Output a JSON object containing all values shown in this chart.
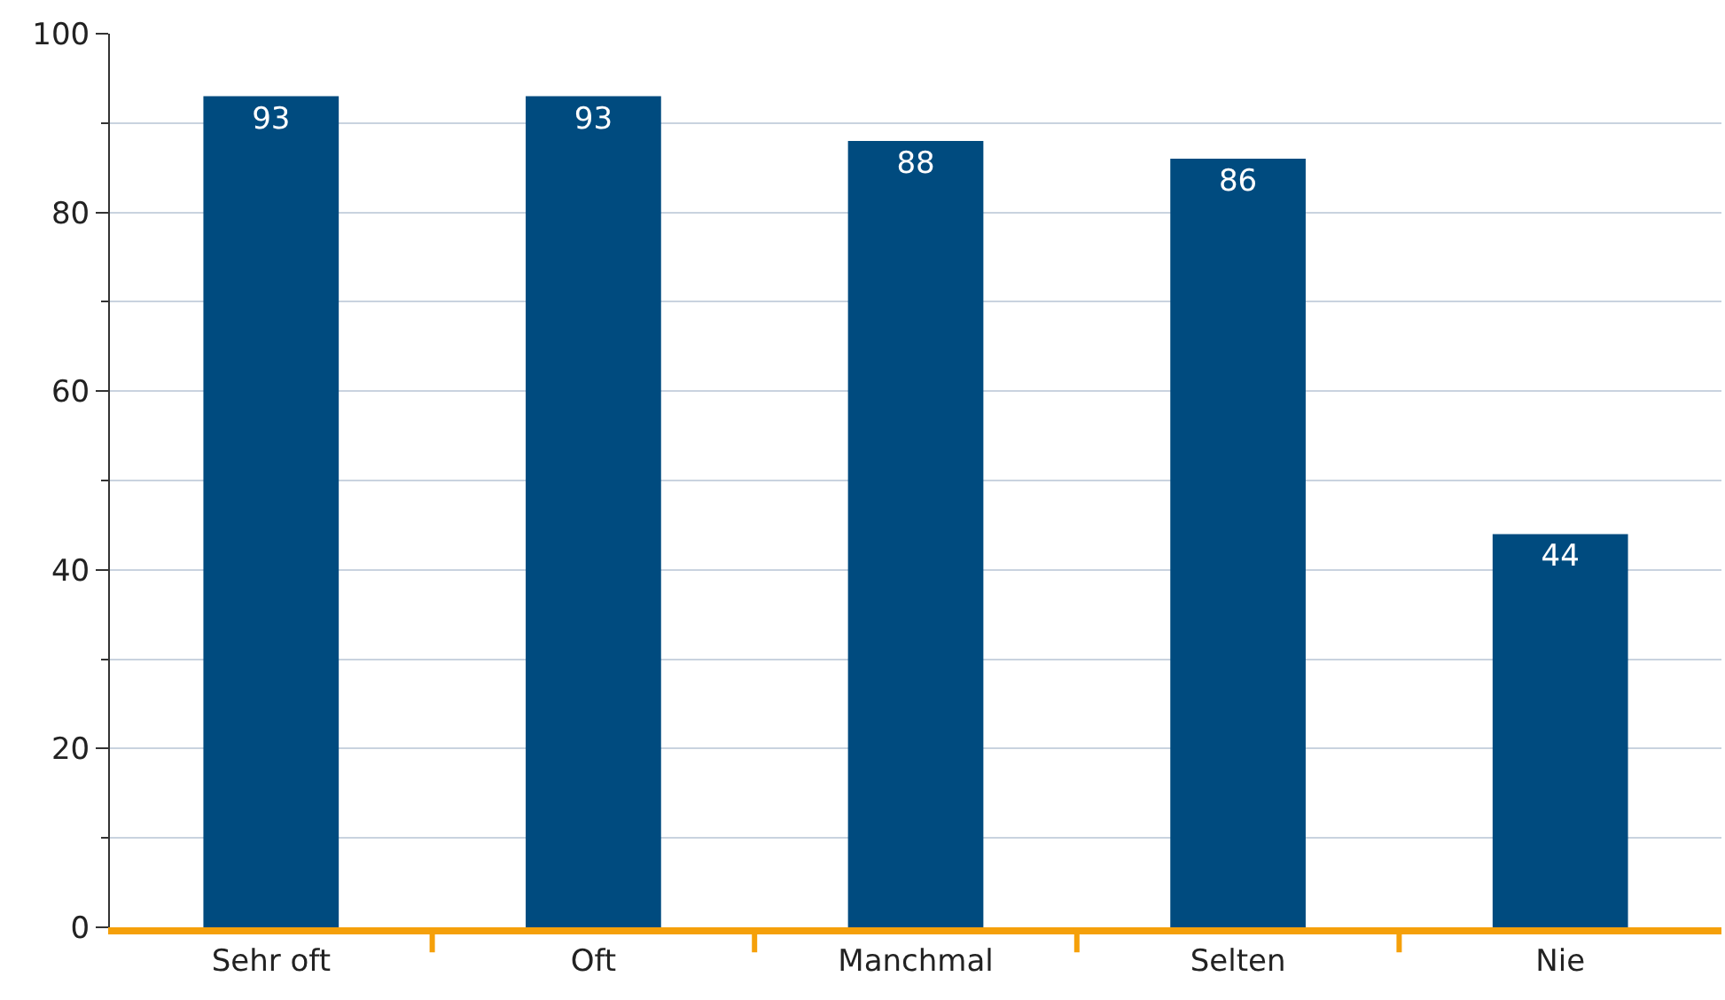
{
  "chart_data": {
    "type": "bar",
    "categories": [
      "Sehr oft",
      "Oft",
      "Manchmal",
      "Selten",
      "Nie"
    ],
    "values": [
      93,
      93,
      88,
      86,
      44
    ],
    "color": "#004b7f",
    "ylim": [
      0,
      100
    ],
    "yticks": [
      0,
      20,
      40,
      60,
      80,
      100
    ],
    "grid": "y",
    "data_labels": true
  }
}
